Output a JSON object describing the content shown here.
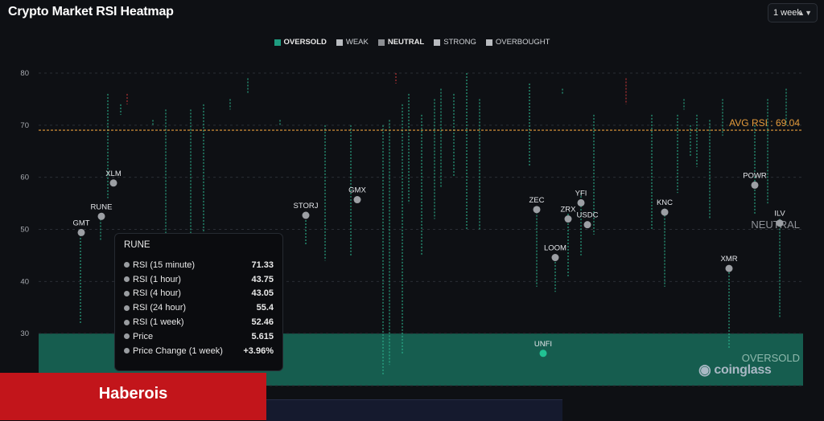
{
  "page": {
    "title": "Crypto Market RSI Heatmap",
    "period_select": "1 week",
    "legend": [
      {
        "label": "OVERSOLD",
        "color": "#1e9c80",
        "bold": true
      },
      {
        "label": "WEAK",
        "color": "#b9bcc0",
        "bold": false
      },
      {
        "label": "NEUTRAL",
        "color": "#8c8f93",
        "bold": true
      },
      {
        "label": "STRONG",
        "color": "#b9bcc0",
        "bold": false
      },
      {
        "label": "OVERBOUGHT",
        "color": "#b9bcc0",
        "bold": false
      }
    ],
    "banner_text": "Haberois",
    "watermark": "coinglass"
  },
  "chart_data": {
    "type": "scatter",
    "title": "Crypto Market RSI Heatmap",
    "ylim": [
      20,
      80
    ],
    "yticks": [
      20,
      30,
      40,
      50,
      60,
      70,
      80
    ],
    "grid": true,
    "avg_rsi": 69.04,
    "avg_label": "AVG RSI : 69.04",
    "zones": [
      {
        "name": "OVERSOLD",
        "from": 20,
        "to": 30,
        "color": "#1e9c80"
      }
    ],
    "zone_labels": {
      "neutral": "NEUTRAL",
      "oversold": "OVERSOLD"
    },
    "labeled_points": [
      {
        "name": "GMT",
        "rsi": 49.4
      },
      {
        "name": "RUNE",
        "rsi": 52.5
      },
      {
        "name": "XLM",
        "rsi": 58.9
      },
      {
        "name": "STORJ",
        "rsi": 52.7
      },
      {
        "name": "GMX",
        "rsi": 55.7
      },
      {
        "name": "ZEC",
        "rsi": 53.8
      },
      {
        "name": "LOOM",
        "rsi": 44.6
      },
      {
        "name": "ZRX",
        "rsi": 52.0
      },
      {
        "name": "YFI",
        "rsi": 55.1
      },
      {
        "name": "USDC",
        "rsi": 50.9
      },
      {
        "name": "KNC",
        "rsi": 53.3
      },
      {
        "name": "XMR",
        "rsi": 42.5
      },
      {
        "name": "POWR",
        "rsi": 58.5
      },
      {
        "name": "ILV",
        "rsi": 51.2
      },
      {
        "name": "UNFI",
        "rsi": 26.2,
        "oversold": true
      }
    ],
    "tooltip": {
      "title": "RUNE",
      "rows": [
        {
          "label": "RSI (15 minute)",
          "value": "71.33"
        },
        {
          "label": "RSI (1 hour)",
          "value": "43.75"
        },
        {
          "label": "RSI (4 hour)",
          "value": "43.05"
        },
        {
          "label": "RSI (24 hour)",
          "value": "55.4"
        },
        {
          "label": "RSI (1 week)",
          "value": "52.46"
        },
        {
          "label": "Price",
          "value": "5.615"
        },
        {
          "label": "Price Change (1 week)",
          "value": "+3.96%"
        }
      ]
    }
  }
}
